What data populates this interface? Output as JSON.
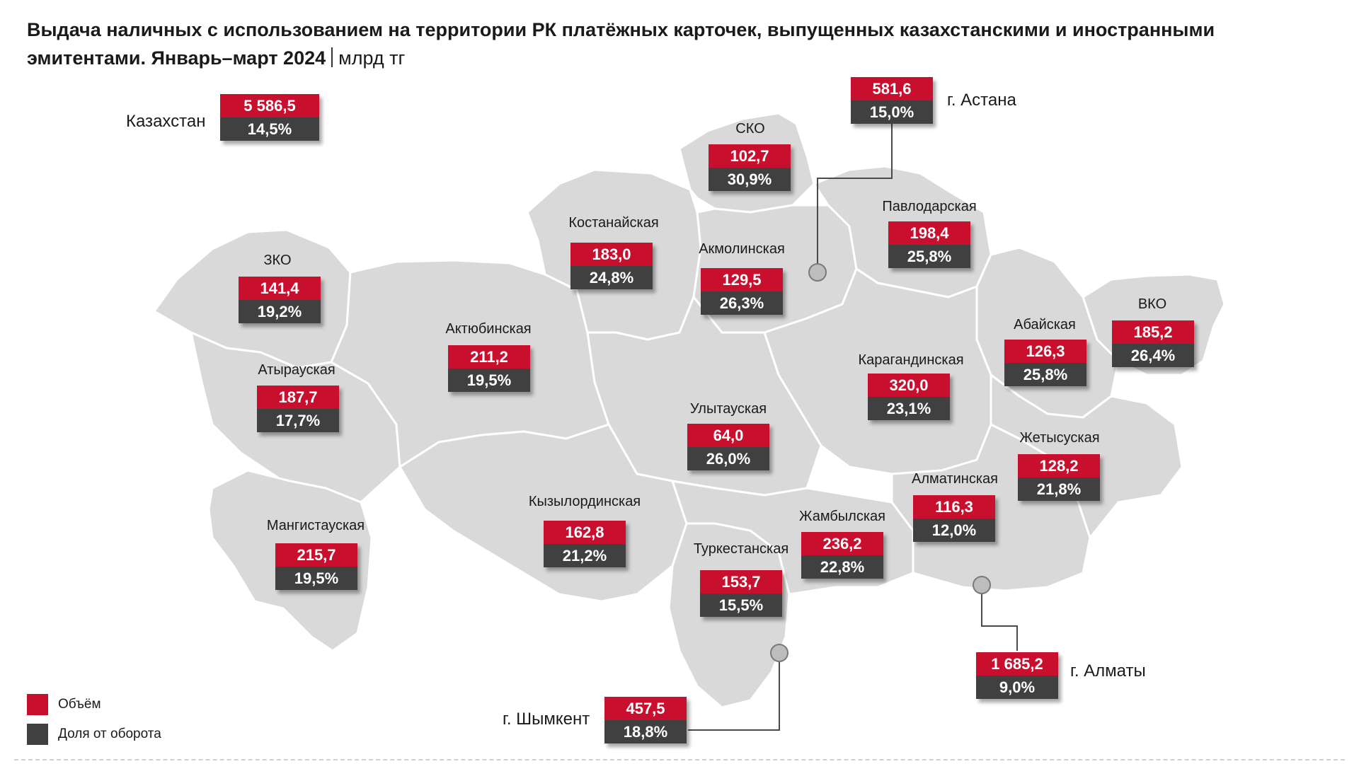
{
  "title": {
    "main": "Выдача наличных с использованием на территории РК платёжных карточек, выпущенных казахстанскими и иностранными эмитентами. Январь–март 2024",
    "unit": "млрд тг"
  },
  "colors": {
    "volume": "#c8102e",
    "share": "#404040",
    "map_fill": "#d9d9d9"
  },
  "legend": [
    {
      "label": "Объём",
      "color": "#c8102e"
    },
    {
      "label": "Доля от оборота",
      "color": "#404040"
    }
  ],
  "national": {
    "name": "Казахстан",
    "volume": "5 586,5",
    "share": "14,5%"
  },
  "regions": [
    {
      "name": "ЗКО",
      "volume": "141,4",
      "share": "19,2%"
    },
    {
      "name": "Атырауская",
      "volume": "187,7",
      "share": "17,7%"
    },
    {
      "name": "Мангистауская",
      "volume": "215,7",
      "share": "19,5%"
    },
    {
      "name": "Актюбинская",
      "volume": "211,2",
      "share": "19,5%"
    },
    {
      "name": "Костанайская",
      "volume": "183,0",
      "share": "24,8%"
    },
    {
      "name": "СКО",
      "volume": "102,7",
      "share": "30,9%"
    },
    {
      "name": "Акмолинская",
      "volume": "129,5",
      "share": "26,3%"
    },
    {
      "name": "Павлодарская",
      "volume": "198,4",
      "share": "25,8%"
    },
    {
      "name": "ВКО",
      "volume": "185,2",
      "share": "26,4%"
    },
    {
      "name": "Абайская",
      "volume": "126,3",
      "share": "25,8%"
    },
    {
      "name": "Карагандинская",
      "volume": "320,0",
      "share": "23,1%"
    },
    {
      "name": "Улытауская",
      "volume": "64,0",
      "share": "26,0%"
    },
    {
      "name": "Кызылординская",
      "volume": "162,8",
      "share": "21,2%"
    },
    {
      "name": "Туркестанская",
      "volume": "153,7",
      "share": "15,5%"
    },
    {
      "name": "Жамбылская",
      "volume": "236,2",
      "share": "22,8%"
    },
    {
      "name": "Алматинская",
      "volume": "116,3",
      "share": "12,0%"
    },
    {
      "name": "Жетысуская",
      "volume": "128,2",
      "share": "21,8%"
    }
  ],
  "cities": [
    {
      "name": "г. Астана",
      "volume": "581,6",
      "share": "15,0%"
    },
    {
      "name": "г. Алматы",
      "volume": "1 685,2",
      "share": "9,0%"
    },
    {
      "name": "г. Шымкент",
      "volume": "457,5",
      "share": "18,8%"
    }
  ]
}
